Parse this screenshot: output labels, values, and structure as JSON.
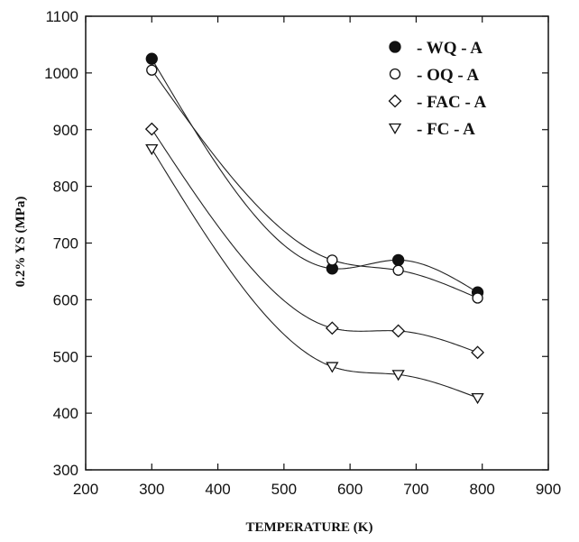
{
  "chart_data": {
    "type": "line",
    "xlabel": "TEMPERATURE (K)",
    "ylabel": "0.2% YS (MPa)",
    "xlim": [
      200,
      900
    ],
    "ylim": [
      300,
      1100
    ],
    "xticks": [
      200,
      300,
      400,
      500,
      600,
      700,
      800,
      900
    ],
    "yticks": [
      300,
      400,
      500,
      600,
      700,
      800,
      900,
      1000,
      1100
    ],
    "grid": false,
    "legend_position": "top-right",
    "series": [
      {
        "name": "- WQ - A",
        "marker": "filled-circle",
        "x": [
          300,
          573,
          673,
          793
        ],
        "y": [
          1025,
          655,
          670,
          613
        ]
      },
      {
        "name": "- OQ - A",
        "marker": "open-circle",
        "x": [
          300,
          573,
          673,
          793
        ],
        "y": [
          1005,
          670,
          652,
          603
        ]
      },
      {
        "name": "- FAC - A",
        "marker": "open-diamond",
        "x": [
          300,
          573,
          673,
          793
        ],
        "y": [
          901,
          550,
          545,
          507
        ]
      },
      {
        "name": "- FC - A",
        "marker": "open-triangle-down",
        "x": [
          300,
          573,
          673,
          793
        ],
        "y": [
          866,
          482,
          468,
          427
        ]
      }
    ]
  }
}
